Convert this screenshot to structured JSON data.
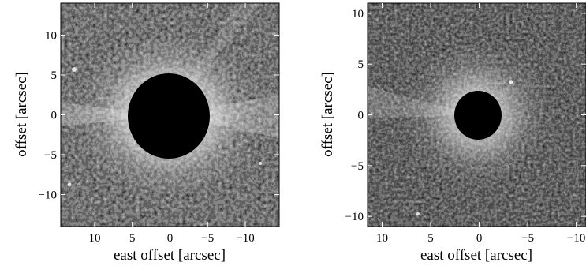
{
  "panels": [
    {
      "id": "left",
      "ylabel": "offset [arcsec]",
      "xlabel": "east offset [arcsec]",
      "xticks": [
        10,
        5,
        0,
        -5,
        -10
      ],
      "yticks": [
        10,
        5,
        0,
        -5,
        -10
      ],
      "xlim": [
        14.5,
        -14.5
      ],
      "ylim": [
        -14,
        14
      ],
      "mask_radius": 5.0,
      "image_description": "noisy grayscale speckle field with bright diffuse halo around a central black circular occulting mask"
    },
    {
      "id": "right",
      "ylabel": "offset [arcsec]",
      "xlabel": "east offset [arcsec]",
      "xticks": [
        10,
        5,
        0,
        -5,
        -10
      ],
      "yticks": [
        10,
        5,
        0,
        -5,
        -10
      ],
      "xlim": [
        11.5,
        -11
      ],
      "ylim": [
        -11,
        11
      ],
      "mask_radius": 2.4,
      "image_description": "noisy grayscale speckle field with bright diffuse halo around a smaller central black circular occulting mask"
    }
  ],
  "tick_labels": {
    "x": [
      "10",
      "5",
      "0",
      "−5",
      "−10"
    ],
    "y": [
      "10",
      "5",
      "0",
      "−5",
      "−10"
    ],
    "right_x_last": "−10"
  }
}
